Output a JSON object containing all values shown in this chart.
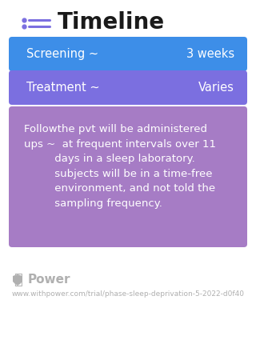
{
  "title": "Timeline",
  "bg_color": "#ffffff",
  "screening": {
    "label": "Screening ~",
    "value": "3 weeks",
    "bg_color": "#3D8EE8",
    "text_color": "#ffffff"
  },
  "treatment": {
    "label": "Treatment ~",
    "value": "Varies",
    "bg_color": "#7B6FE0",
    "text_color": "#ffffff"
  },
  "followup": {
    "line1": "Followthe pvt will be administered",
    "line2": "ups ~  at frequent intervals over 11",
    "line3": "         days in a sleep laboratory.",
    "line4": "         subjects will be in a time-free",
    "line5": "         environment, and not told the",
    "line6": "         sampling frequency.",
    "bg_color": "#A67CC5",
    "text_color": "#ffffff"
  },
  "footer_logo_text": "Power",
  "footer_url": "www.withpower.com/trial/phase-sleep-deprivation-5-2022-d0f40",
  "footer_color": "#b0b0b0",
  "icon_color": "#7B6FE0",
  "title_fontsize": 20,
  "label_fontsize": 10.5,
  "body_fontsize": 9.5,
  "footer_fontsize": 6.5
}
